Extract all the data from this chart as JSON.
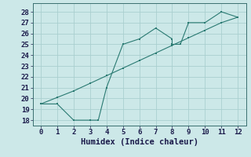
{
  "line1_x": [
    0,
    1,
    2,
    2,
    3,
    3,
    3.5,
    4,
    4,
    5,
    5,
    6,
    7,
    7,
    8,
    8,
    8.5,
    9,
    9,
    10,
    11,
    12
  ],
  "line1_y": [
    19.5,
    19.5,
    18,
    18,
    18,
    18,
    18,
    21,
    21,
    25,
    25,
    25.5,
    26.5,
    26.5,
    25.5,
    25,
    25,
    27,
    27,
    27,
    28,
    27.5
  ],
  "line2_x": [
    0,
    1,
    2,
    3,
    4,
    5,
    6,
    7,
    8,
    9,
    10,
    11,
    12
  ],
  "line2_y": [
    19.5,
    20.1,
    20.7,
    21.4,
    22.1,
    22.8,
    23.5,
    24.2,
    24.9,
    25.6,
    26.3,
    27.0,
    27.5
  ],
  "line_color": "#2a7a72",
  "bg_color": "#cce8e8",
  "grid_color": "#aacfcf",
  "xlabel": "Humidex (Indice chaleur)",
  "xlim": [
    -0.5,
    12.5
  ],
  "ylim": [
    17.5,
    28.8
  ],
  "yticks": [
    18,
    19,
    20,
    21,
    22,
    23,
    24,
    25,
    26,
    27,
    28
  ],
  "xticks": [
    0,
    1,
    2,
    3,
    4,
    5,
    6,
    7,
    8,
    9,
    10,
    11,
    12
  ],
  "xlabel_fontsize": 7.5,
  "tick_fontsize": 6.5
}
